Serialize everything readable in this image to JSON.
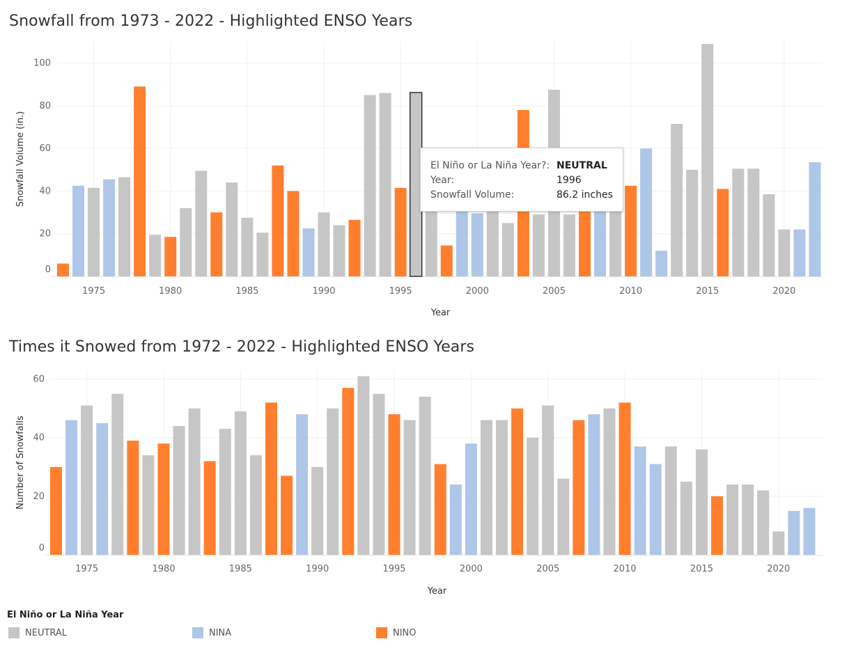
{
  "colors": {
    "NEUTRAL": "#c6c6c6",
    "NINA": "#aec7e8",
    "NINO": "#ff7f2e"
  },
  "chart_data": [
    {
      "type": "bar",
      "title": "Snowfall from 1973 - 2022 - Highlighted ENSO Years",
      "xlabel": "Year",
      "ylabel": "Snowfall Volume (in.)",
      "ylim": [
        0,
        110
      ],
      "yticks": [
        0,
        20,
        40,
        60,
        80,
        100
      ],
      "xticks": [
        1975,
        1980,
        1985,
        1990,
        1995,
        2000,
        2005,
        2010,
        2015,
        2020
      ],
      "grid": true,
      "highlight_year": 1996,
      "bars": [
        {
          "year": 1973,
          "value": 6,
          "enso": "NINO"
        },
        {
          "year": 1974,
          "value": 42.5,
          "enso": "NINA"
        },
        {
          "year": 1975,
          "value": 41.5,
          "enso": "NEUTRAL"
        },
        {
          "year": 1976,
          "value": 45.5,
          "enso": "NINA"
        },
        {
          "year": 1977,
          "value": 46.5,
          "enso": "NEUTRAL"
        },
        {
          "year": 1978,
          "value": 89,
          "enso": "NINO"
        },
        {
          "year": 1979,
          "value": 19.5,
          "enso": "NEUTRAL"
        },
        {
          "year": 1980,
          "value": 18.5,
          "enso": "NINO"
        },
        {
          "year": 1981,
          "value": 32,
          "enso": "NEUTRAL"
        },
        {
          "year": 1982,
          "value": 49.5,
          "enso": "NEUTRAL"
        },
        {
          "year": 1983,
          "value": 30,
          "enso": "NINO"
        },
        {
          "year": 1984,
          "value": 44,
          "enso": "NEUTRAL"
        },
        {
          "year": 1985,
          "value": 27.5,
          "enso": "NEUTRAL"
        },
        {
          "year": 1986,
          "value": 20.5,
          "enso": "NEUTRAL"
        },
        {
          "year": 1987,
          "value": 52,
          "enso": "NINO"
        },
        {
          "year": 1988,
          "value": 40,
          "enso": "NINO"
        },
        {
          "year": 1989,
          "value": 22.5,
          "enso": "NINA"
        },
        {
          "year": 1990,
          "value": 30,
          "enso": "NEUTRAL"
        },
        {
          "year": 1991,
          "value": 24,
          "enso": "NEUTRAL"
        },
        {
          "year": 1992,
          "value": 26.5,
          "enso": "NINO"
        },
        {
          "year": 1993,
          "value": 85,
          "enso": "NEUTRAL"
        },
        {
          "year": 1994,
          "value": 86,
          "enso": "NEUTRAL"
        },
        {
          "year": 1995,
          "value": 41.5,
          "enso": "NINO"
        },
        {
          "year": 1996,
          "value": 86.2,
          "enso": "NEUTRAL"
        },
        {
          "year": 1997,
          "value": 57,
          "enso": "NEUTRAL"
        },
        {
          "year": 1998,
          "value": 14.5,
          "enso": "NINO"
        },
        {
          "year": 1999,
          "value": 30.5,
          "enso": "NINA"
        },
        {
          "year": 2000,
          "value": 29.5,
          "enso": "NINA"
        },
        {
          "year": 2001,
          "value": 30.5,
          "enso": "NEUTRAL"
        },
        {
          "year": 2002,
          "value": 25,
          "enso": "NEUTRAL"
        },
        {
          "year": 2003,
          "value": 78,
          "enso": "NINO"
        },
        {
          "year": 2004,
          "value": 29,
          "enso": "NEUTRAL"
        },
        {
          "year": 2005,
          "value": 87.5,
          "enso": "NEUTRAL"
        },
        {
          "year": 2006,
          "value": 29,
          "enso": "NEUTRAL"
        },
        {
          "year": 2007,
          "value": 30.5,
          "enso": "NINO"
        },
        {
          "year": 2008,
          "value": 30.5,
          "enso": "NINA"
        },
        {
          "year": 2009,
          "value": 30.5,
          "enso": "NEUTRAL"
        },
        {
          "year": 2010,
          "value": 42.5,
          "enso": "NINO"
        },
        {
          "year": 2011,
          "value": 60,
          "enso": "NINA"
        },
        {
          "year": 2012,
          "value": 12,
          "enso": "NINA"
        },
        {
          "year": 2013,
          "value": 71.5,
          "enso": "NEUTRAL"
        },
        {
          "year": 2014,
          "value": 50,
          "enso": "NEUTRAL"
        },
        {
          "year": 2015,
          "value": 109,
          "enso": "NEUTRAL"
        },
        {
          "year": 2016,
          "value": 41,
          "enso": "NINO"
        },
        {
          "year": 2017,
          "value": 50.5,
          "enso": "NEUTRAL"
        },
        {
          "year": 2018,
          "value": 50.5,
          "enso": "NEUTRAL"
        },
        {
          "year": 2019,
          "value": 38.5,
          "enso": "NEUTRAL"
        },
        {
          "year": 2020,
          "value": 22,
          "enso": "NEUTRAL"
        },
        {
          "year": 2021,
          "value": 22,
          "enso": "NINA"
        },
        {
          "year": 2022,
          "value": 53.5,
          "enso": "NINA"
        }
      ]
    },
    {
      "type": "bar",
      "title": "Times it Snowed from 1972 - 2022 - Highlighted ENSO Years",
      "xlabel": "Year",
      "ylabel": "Number of Snowfalls",
      "ylim": [
        0,
        63
      ],
      "yticks": [
        0,
        20,
        40,
        60
      ],
      "xticks": [
        1975,
        1980,
        1985,
        1990,
        1995,
        2000,
        2005,
        2010,
        2015,
        2020
      ],
      "grid": true,
      "bars": [
        {
          "year": 1973,
          "value": 30,
          "enso": "NINO"
        },
        {
          "year": 1974,
          "value": 46,
          "enso": "NINA"
        },
        {
          "year": 1975,
          "value": 51,
          "enso": "NEUTRAL"
        },
        {
          "year": 1976,
          "value": 45,
          "enso": "NINA"
        },
        {
          "year": 1977,
          "value": 55,
          "enso": "NEUTRAL"
        },
        {
          "year": 1978,
          "value": 39,
          "enso": "NINO"
        },
        {
          "year": 1979,
          "value": 34,
          "enso": "NEUTRAL"
        },
        {
          "year": 1980,
          "value": 38,
          "enso": "NINO"
        },
        {
          "year": 1981,
          "value": 44,
          "enso": "NEUTRAL"
        },
        {
          "year": 1982,
          "value": 50,
          "enso": "NEUTRAL"
        },
        {
          "year": 1983,
          "value": 32,
          "enso": "NINO"
        },
        {
          "year": 1984,
          "value": 43,
          "enso": "NEUTRAL"
        },
        {
          "year": 1985,
          "value": 49,
          "enso": "NEUTRAL"
        },
        {
          "year": 1986,
          "value": 34,
          "enso": "NEUTRAL"
        },
        {
          "year": 1987,
          "value": 52,
          "enso": "NINO"
        },
        {
          "year": 1988,
          "value": 27,
          "enso": "NINO"
        },
        {
          "year": 1989,
          "value": 48,
          "enso": "NINA"
        },
        {
          "year": 1990,
          "value": 30,
          "enso": "NEUTRAL"
        },
        {
          "year": 1991,
          "value": 50,
          "enso": "NEUTRAL"
        },
        {
          "year": 1992,
          "value": 57,
          "enso": "NINO"
        },
        {
          "year": 1993,
          "value": 61,
          "enso": "NEUTRAL"
        },
        {
          "year": 1994,
          "value": 55,
          "enso": "NEUTRAL"
        },
        {
          "year": 1995,
          "value": 48,
          "enso": "NINO"
        },
        {
          "year": 1996,
          "value": 46,
          "enso": "NEUTRAL"
        },
        {
          "year": 1997,
          "value": 54,
          "enso": "NEUTRAL"
        },
        {
          "year": 1998,
          "value": 31,
          "enso": "NINO"
        },
        {
          "year": 1999,
          "value": 24,
          "enso": "NINA"
        },
        {
          "year": 2000,
          "value": 38,
          "enso": "NINA"
        },
        {
          "year": 2001,
          "value": 46,
          "enso": "NEUTRAL"
        },
        {
          "year": 2002,
          "value": 46,
          "enso": "NEUTRAL"
        },
        {
          "year": 2003,
          "value": 50,
          "enso": "NINO"
        },
        {
          "year": 2004,
          "value": 40,
          "enso": "NEUTRAL"
        },
        {
          "year": 2005,
          "value": 51,
          "enso": "NEUTRAL"
        },
        {
          "year": 2006,
          "value": 26,
          "enso": "NEUTRAL"
        },
        {
          "year": 2007,
          "value": 46,
          "enso": "NINO"
        },
        {
          "year": 2008,
          "value": 48,
          "enso": "NINA"
        },
        {
          "year": 2009,
          "value": 50,
          "enso": "NEUTRAL"
        },
        {
          "year": 2010,
          "value": 52,
          "enso": "NINO"
        },
        {
          "year": 2011,
          "value": 37,
          "enso": "NINA"
        },
        {
          "year": 2012,
          "value": 31,
          "enso": "NINA"
        },
        {
          "year": 2013,
          "value": 37,
          "enso": "NEUTRAL"
        },
        {
          "year": 2014,
          "value": 25,
          "enso": "NEUTRAL"
        },
        {
          "year": 2015,
          "value": 36,
          "enso": "NEUTRAL"
        },
        {
          "year": 2016,
          "value": 20,
          "enso": "NINO"
        },
        {
          "year": 2017,
          "value": 24,
          "enso": "NEUTRAL"
        },
        {
          "year": 2018,
          "value": 24,
          "enso": "NEUTRAL"
        },
        {
          "year": 2019,
          "value": 22,
          "enso": "NEUTRAL"
        },
        {
          "year": 2020,
          "value": 8,
          "enso": "NEUTRAL"
        },
        {
          "year": 2021,
          "value": 15,
          "enso": "NINA"
        },
        {
          "year": 2022,
          "value": 16,
          "enso": "NINA"
        }
      ]
    }
  ],
  "tooltip": {
    "rows": [
      {
        "key": "El Niño or La Niña Year?:",
        "value": "NEUTRAL"
      },
      {
        "key": "Year:",
        "value": "1996"
      },
      {
        "key": "Snowfall Volume:",
        "value": "86.2 inches"
      }
    ]
  },
  "legend": {
    "title": "El Niño or La Niña Year",
    "items": [
      {
        "label": "NEUTRAL",
        "key": "NEUTRAL"
      },
      {
        "label": "NINA",
        "key": "NINA"
      },
      {
        "label": "NINO",
        "key": "NINO"
      }
    ]
  }
}
